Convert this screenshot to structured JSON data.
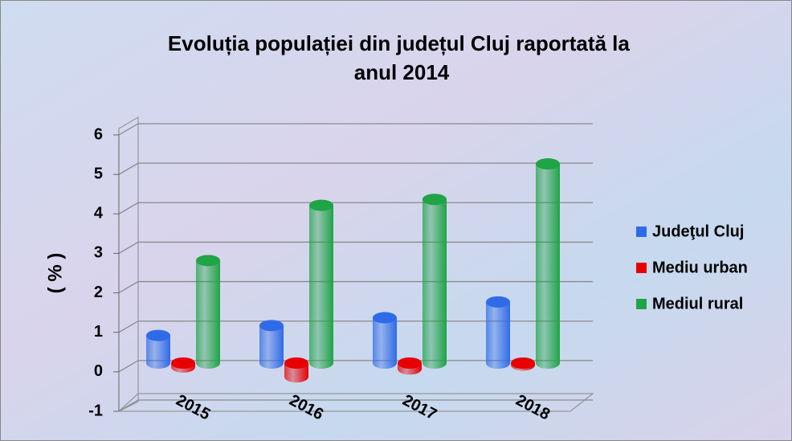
{
  "chart_data": {
    "type": "bar3d",
    "title": "Evoluția populației din județul Cluj raportată la anul 2014",
    "y_label": "( % )",
    "categories": [
      "2015",
      "2016",
      "2017",
      "2018"
    ],
    "series": [
      {
        "name": "Judeţul Cluj",
        "color": "#2f6be8",
        "values": [
          0.7,
          0.95,
          1.15,
          1.55
        ]
      },
      {
        "name": "Mediu urban",
        "color": "#e80000",
        "values": [
          -0.1,
          -0.35,
          -0.15,
          -0.05
        ]
      },
      {
        "name": "Mediul rural",
        "color": "#1fa446",
        "values": [
          2.6,
          4.0,
          4.15,
          5.05
        ]
      }
    ],
    "ylim": [
      -1,
      6
    ],
    "yticks": [
      -1,
      0,
      1,
      2,
      3,
      4,
      5,
      6
    ],
    "grid": true,
    "legend": "right"
  }
}
